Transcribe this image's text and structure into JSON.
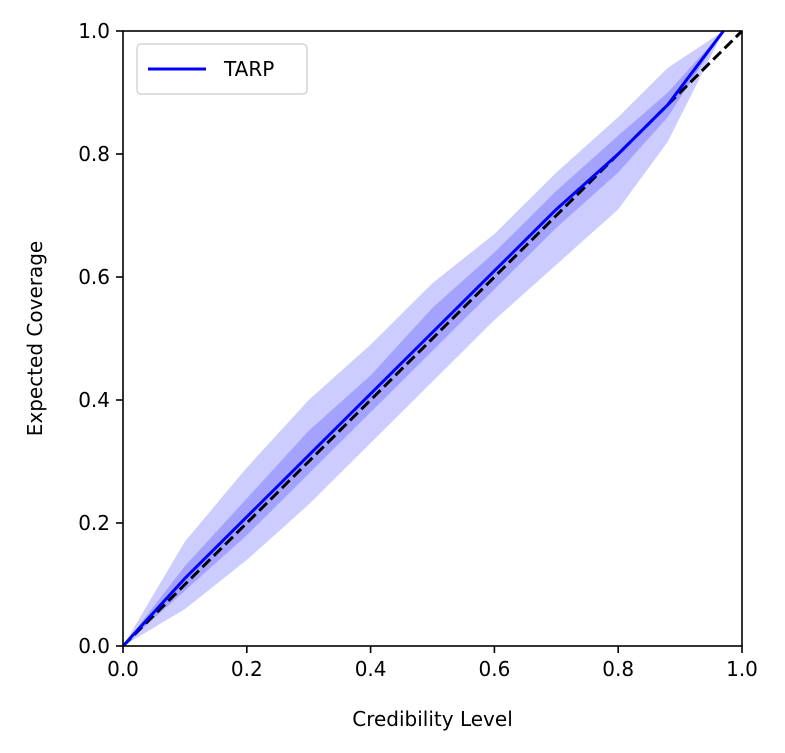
{
  "chart_data": {
    "type": "line",
    "title": "",
    "xlabel": "Credibility Level",
    "ylabel": "Expected Coverage",
    "xlim": [
      0.0,
      1.0
    ],
    "ylim": [
      0.0,
      1.0
    ],
    "xticks": [
      "0.0",
      "0.2",
      "0.4",
      "0.6",
      "0.8",
      "1.0"
    ],
    "yticks": [
      "0.0",
      "0.2",
      "0.4",
      "0.6",
      "0.8",
      "1.0"
    ],
    "grid": false,
    "legend_position": "top-left",
    "legend": [
      {
        "label": "TARP",
        "color": "#0000ff"
      }
    ],
    "series": [
      {
        "name": "TARP",
        "color": "#0000ff",
        "x": [
          0.0,
          0.1,
          0.2,
          0.3,
          0.4,
          0.5,
          0.6,
          0.7,
          0.8,
          0.88,
          0.97
        ],
        "y": [
          0.0,
          0.11,
          0.21,
          0.31,
          0.41,
          0.51,
          0.61,
          0.71,
          0.8,
          0.88,
          1.0
        ]
      }
    ],
    "bands": [
      {
        "color": "#0000ff",
        "opacity": 0.2,
        "x": [
          0.0,
          0.1,
          0.2,
          0.3,
          0.4,
          0.5,
          0.6,
          0.7,
          0.8,
          0.88,
          0.97
        ],
        "lower": [
          0.0,
          0.06,
          0.14,
          0.23,
          0.33,
          0.43,
          0.53,
          0.62,
          0.71,
          0.82,
          1.0
        ],
        "upper": [
          0.0,
          0.17,
          0.29,
          0.4,
          0.49,
          0.59,
          0.67,
          0.77,
          0.86,
          0.94,
          1.0
        ]
      },
      {
        "color": "#0000ff",
        "opacity": 0.2,
        "x": [
          0.0,
          0.1,
          0.2,
          0.3,
          0.4,
          0.5,
          0.6,
          0.7,
          0.8,
          0.88,
          0.97
        ],
        "lower": [
          0.0,
          0.09,
          0.18,
          0.28,
          0.38,
          0.48,
          0.58,
          0.68,
          0.77,
          0.86,
          1.0
        ],
        "upper": [
          0.0,
          0.13,
          0.24,
          0.35,
          0.44,
          0.55,
          0.64,
          0.74,
          0.83,
          0.9,
          1.0
        ]
      }
    ],
    "reference_line": {
      "style": "dashed",
      "color": "#000000",
      "x": [
        0.0,
        1.0
      ],
      "y": [
        0.0,
        1.0
      ]
    }
  }
}
